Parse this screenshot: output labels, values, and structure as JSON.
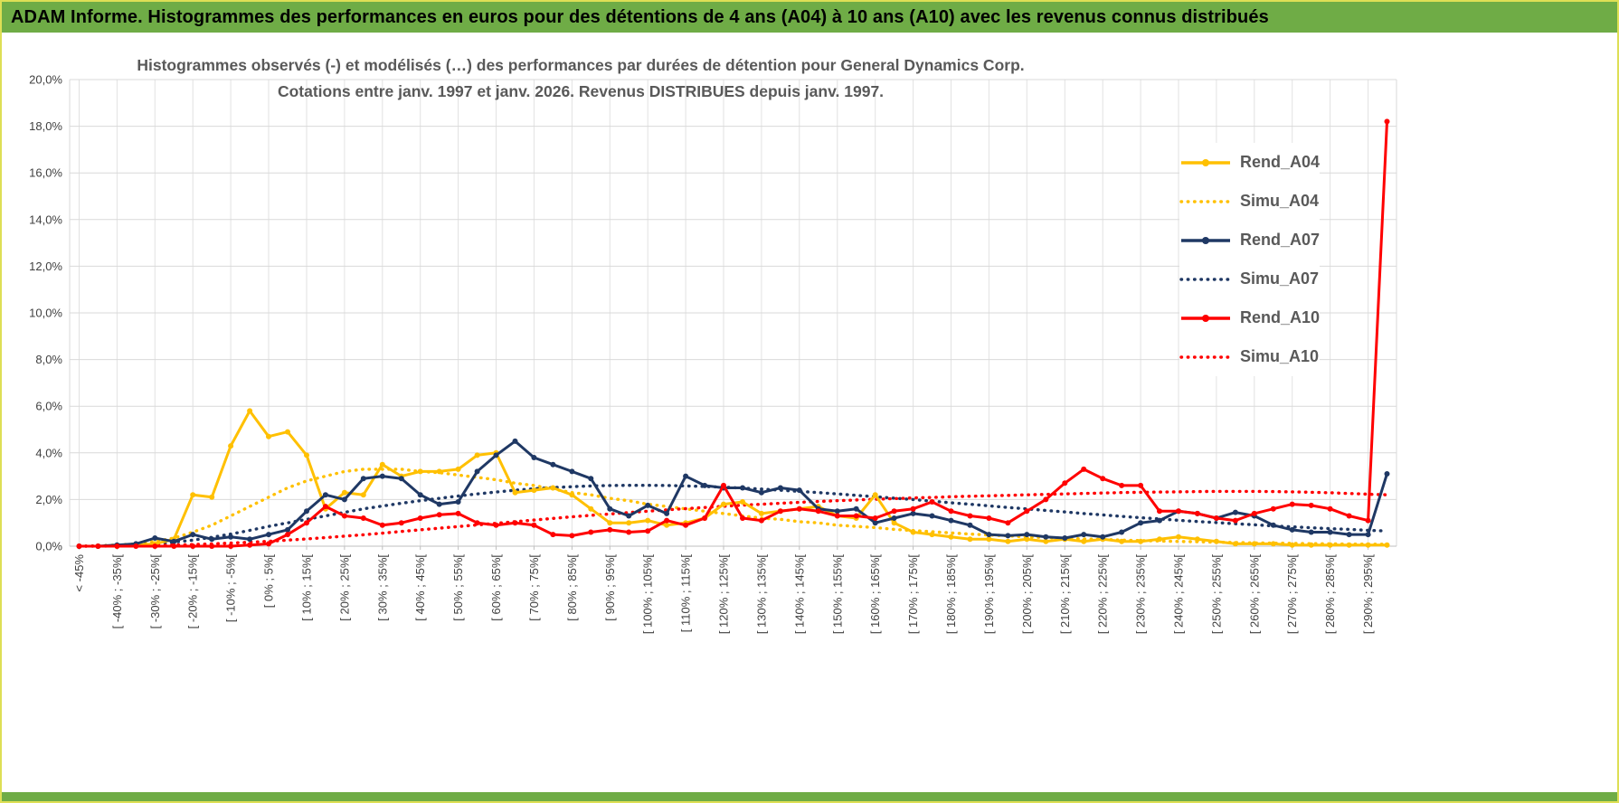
{
  "banner": {
    "title": "ADAM Informe. Histogrammes des performances en euros pour des détentions de 4 ans (A04) à 10 ans (A10) avec les revenus connus distribués",
    "bg_color": "#6FAC46"
  },
  "chart_data": {
    "type": "line",
    "title_line1": "Histogrammes observés (-) et modélisés (…) des performances par durées de détention pour General Dynamics Corp.",
    "title_line2": "Cotations entre janv. 1997 et janv. 2026. Revenus DISTRIBUES depuis janv. 1997.",
    "value_unit": "percent",
    "ylim": [
      0,
      20
    ],
    "ytick_step": 2,
    "ytick_labels": [
      "0,0%",
      "2,0%",
      "4,0%",
      "6,0%",
      "8,0%",
      "10,0%",
      "12,0%",
      "14,0%",
      "16,0%",
      "18,0%",
      "20,0%"
    ],
    "grid": true,
    "legend_position": "right",
    "categories": [
      "< -45%",
      "",
      "[ -40% ; -35%[",
      "",
      "[ -30% ; -25%[",
      "",
      "[ -20% ; -15%[",
      "",
      "[ -10% ; -5%[",
      "",
      "[ 0% ; 5%[",
      "",
      "[ 10% ; 15%[",
      "",
      "[ 20% ; 25%[",
      "",
      "[ 30% ; 35%[",
      "",
      "[ 40% ; 45%[",
      "",
      "[ 50% ; 55%[",
      "",
      "[ 60% ; 65%[",
      "",
      "[ 70% ; 75%[",
      "",
      "[ 80% ; 85%[",
      "",
      "[ 90% ; 95%[",
      "",
      "[ 100% ; 105%[",
      "",
      "[ 110% ; 115%[",
      "",
      "[ 120% ; 125%[",
      "",
      "[ 130% ; 135%[",
      "",
      "[ 140% ; 145%[",
      "",
      "[ 150% ; 155%[",
      "",
      "[ 160% ; 165%[",
      "",
      "[ 170% ; 175%[",
      "",
      "[ 180% ; 185%[",
      "",
      "[ 190% ; 195%[",
      "",
      "[ 200% ; 205%[",
      "",
      "[ 210% ; 215%[",
      "",
      "[ 220% ; 225%[",
      "",
      "[ 230% ; 235%[",
      "",
      "[ 240% ; 245%[",
      "",
      "[ 250% ; 255%[",
      "",
      "[ 260% ; 265%[",
      "",
      "[ 270% ; 275%[",
      "",
      "[ 280% ; 285%[",
      "",
      "[ 290% ; 295%[",
      ""
    ],
    "series": [
      {
        "name": "Rend_A04",
        "color": "#FFC000",
        "style": "solid",
        "values": [
          0,
          0,
          0,
          0.05,
          0.1,
          0.3,
          2.2,
          2.1,
          4.3,
          5.8,
          4.7,
          4.9,
          3.9,
          1.6,
          2.3,
          2.2,
          3.5,
          3.0,
          3.2,
          3.2,
          3.3,
          3.9,
          4.0,
          2.3,
          2.4,
          2.5,
          2.2,
          1.6,
          1.0,
          1.0,
          1.1,
          0.9,
          1.0,
          1.2,
          1.8,
          1.9,
          1.4,
          1.5,
          1.6,
          1.7,
          1.3,
          1.2,
          2.2,
          1.0,
          0.6,
          0.5,
          0.4,
          0.3,
          0.3,
          0.2,
          0.3,
          0.2,
          0.3,
          0.2,
          0.3,
          0.2,
          0.2,
          0.3,
          0.4,
          0.3,
          0.2,
          0.1,
          0.1,
          0.1,
          0.05,
          0.05,
          0.05,
          0.05,
          0.05,
          0.05
        ]
      },
      {
        "name": "Simu_A04",
        "color": "#FFC000",
        "style": "dotted",
        "values": [
          0,
          0.02,
          0.05,
          0.1,
          0.2,
          0.35,
          0.6,
          0.9,
          1.3,
          1.7,
          2.1,
          2.5,
          2.8,
          3.0,
          3.2,
          3.3,
          3.3,
          3.3,
          3.2,
          3.15,
          3.05,
          2.95,
          2.85,
          2.7,
          2.6,
          2.45,
          2.3,
          2.2,
          2.05,
          1.95,
          1.8,
          1.7,
          1.6,
          1.5,
          1.4,
          1.3,
          1.2,
          1.15,
          1.05,
          1.0,
          0.9,
          0.85,
          0.8,
          0.72,
          0.67,
          0.62,
          0.57,
          0.52,
          0.48,
          0.44,
          0.4,
          0.37,
          0.34,
          0.31,
          0.29,
          0.26,
          0.24,
          0.22,
          0.2,
          0.19,
          0.17,
          0.16,
          0.14,
          0.13,
          0.12,
          0.11,
          0.1,
          0.09,
          0.09,
          0.08
        ]
      },
      {
        "name": "Rend_A07",
        "color": "#1F3864",
        "style": "solid",
        "values": [
          0,
          0,
          0.05,
          0.1,
          0.35,
          0.2,
          0.5,
          0.3,
          0.4,
          0.3,
          0.5,
          0.7,
          1.5,
          2.2,
          2.0,
          2.9,
          3.0,
          2.9,
          2.2,
          1.8,
          1.9,
          3.2,
          3.9,
          4.5,
          3.8,
          3.5,
          3.2,
          2.9,
          1.6,
          1.3,
          1.75,
          1.4,
          3.0,
          2.6,
          2.5,
          2.5,
          2.3,
          2.5,
          2.4,
          1.6,
          1.5,
          1.6,
          1.0,
          1.2,
          1.4,
          1.3,
          1.1,
          0.9,
          0.5,
          0.45,
          0.5,
          0.4,
          0.35,
          0.5,
          0.4,
          0.6,
          1.0,
          1.1,
          1.5,
          1.4,
          1.2,
          1.45,
          1.3,
          0.9,
          0.7,
          0.6,
          0.6,
          0.5,
          0.5,
          3.1
        ]
      },
      {
        "name": "Simu_A07",
        "color": "#1F3864",
        "style": "dotted",
        "values": [
          0,
          0.01,
          0.03,
          0.06,
          0.1,
          0.17,
          0.26,
          0.38,
          0.52,
          0.68,
          0.85,
          1.0,
          1.15,
          1.3,
          1.45,
          1.6,
          1.72,
          1.84,
          1.95,
          2.05,
          2.15,
          2.24,
          2.32,
          2.4,
          2.46,
          2.51,
          2.55,
          2.58,
          2.6,
          2.61,
          2.61,
          2.6,
          2.58,
          2.56,
          2.53,
          2.49,
          2.45,
          2.4,
          2.35,
          2.3,
          2.24,
          2.18,
          2.12,
          2.06,
          2.0,
          1.93,
          1.86,
          1.8,
          1.73,
          1.66,
          1.6,
          1.53,
          1.47,
          1.4,
          1.34,
          1.28,
          1.22,
          1.17,
          1.11,
          1.06,
          1.01,
          0.96,
          0.92,
          0.87,
          0.83,
          0.79,
          0.75,
          0.72,
          0.68,
          0.65
        ]
      },
      {
        "name": "Rend_A10",
        "color": "#FF0000",
        "style": "solid",
        "values": [
          0,
          0,
          0,
          0,
          0,
          0,
          0,
          0,
          0,
          0.05,
          0.1,
          0.5,
          1.0,
          1.7,
          1.3,
          1.2,
          0.9,
          1.0,
          1.2,
          1.35,
          1.4,
          1.0,
          0.9,
          1.0,
          0.9,
          0.5,
          0.45,
          0.6,
          0.7,
          0.6,
          0.65,
          1.1,
          0.9,
          1.2,
          2.6,
          1.2,
          1.1,
          1.5,
          1.6,
          1.5,
          1.3,
          1.3,
          1.2,
          1.5,
          1.6,
          1.9,
          1.5,
          1.3,
          1.2,
          1.0,
          1.5,
          2.0,
          2.7,
          3.3,
          2.9,
          2.6,
          2.6,
          1.5,
          1.5,
          1.4,
          1.2,
          1.1,
          1.4,
          1.6,
          1.8,
          1.75,
          1.6,
          1.3,
          1.1,
          18.2
        ]
      },
      {
        "name": "Simu_A10",
        "color": "#FF0000",
        "style": "dotted",
        "values": [
          0,
          0,
          0.01,
          0.02,
          0.03,
          0.05,
          0.07,
          0.1,
          0.13,
          0.17,
          0.21,
          0.26,
          0.31,
          0.37,
          0.43,
          0.49,
          0.56,
          0.63,
          0.7,
          0.77,
          0.84,
          0.91,
          0.98,
          1.05,
          1.12,
          1.19,
          1.26,
          1.32,
          1.38,
          1.44,
          1.5,
          1.56,
          1.61,
          1.66,
          1.71,
          1.76,
          1.8,
          1.84,
          1.88,
          1.92,
          1.95,
          1.98,
          2.01,
          2.04,
          2.07,
          2.09,
          2.12,
          2.14,
          2.16,
          2.18,
          2.2,
          2.22,
          2.24,
          2.26,
          2.28,
          2.3,
          2.31,
          2.32,
          2.33,
          2.34,
          2.35,
          2.35,
          2.35,
          2.34,
          2.33,
          2.31,
          2.29,
          2.26,
          2.23,
          2.2
        ]
      }
    ]
  }
}
